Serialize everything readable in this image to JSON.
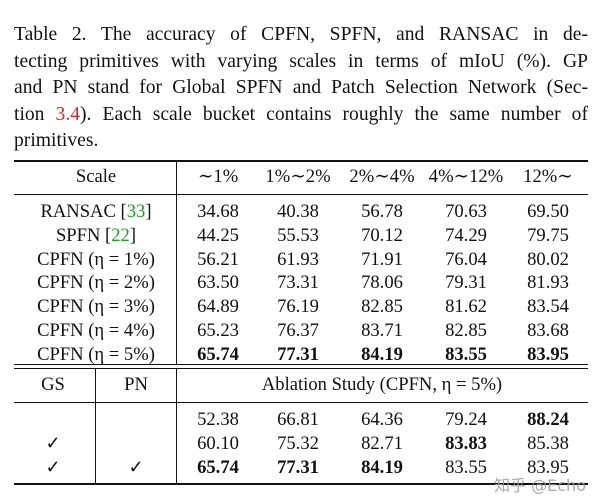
{
  "caption": {
    "line1": "Table 2.   The accuracy of CPFN, SPFN, and RANSAC in de-",
    "line2": "tecting primitives with varying scales in terms of mIoU (%). GP",
    "line3": "and PN stand for Global SPFN and Patch Selection Network (Sec-",
    "line4_a": "tion ",
    "line4_ref": "3.4",
    "line4_b": "). Each scale bucket contains roughly the same number of",
    "line5": "primitives."
  },
  "header": {
    "scale": "Scale",
    "cols": [
      "∼1%",
      "1%∼2%",
      "2%∼4%",
      "4%∼12%",
      "12%∼"
    ]
  },
  "rows": [
    {
      "label_a": "RANSAC [",
      "ref": "33",
      "label_b": "]",
      "values": [
        "34.68",
        "40.38",
        "56.78",
        "70.63",
        "69.50"
      ],
      "bold": [
        false,
        false,
        false,
        false,
        false
      ]
    },
    {
      "label_a": "SPFN [",
      "ref": "22",
      "label_b": "]",
      "values": [
        "44.25",
        "55.53",
        "70.12",
        "74.29",
        "79.75"
      ],
      "bold": [
        false,
        false,
        false,
        false,
        false
      ]
    },
    {
      "label": "CPFN (η = 1%)",
      "values": [
        "56.21",
        "61.93",
        "71.91",
        "76.04",
        "80.02"
      ],
      "bold": [
        false,
        false,
        false,
        false,
        false
      ]
    },
    {
      "label": "CPFN (η = 2%)",
      "values": [
        "63.50",
        "73.31",
        "78.06",
        "79.31",
        "81.93"
      ],
      "bold": [
        false,
        false,
        false,
        false,
        false
      ]
    },
    {
      "label": "CPFN (η = 3%)",
      "values": [
        "64.89",
        "76.19",
        "82.85",
        "81.62",
        "83.54"
      ],
      "bold": [
        false,
        false,
        false,
        false,
        false
      ]
    },
    {
      "label": "CPFN (η = 4%)",
      "values": [
        "65.23",
        "76.37",
        "83.71",
        "82.85",
        "83.68"
      ],
      "bold": [
        false,
        false,
        false,
        false,
        false
      ]
    },
    {
      "label": "CPFN (η = 5%)",
      "values": [
        "65.74",
        "77.31",
        "84.19",
        "83.55",
        "83.95"
      ],
      "bold": [
        true,
        true,
        true,
        true,
        true
      ]
    }
  ],
  "ablation": {
    "gs": "GS",
    "pn": "PN",
    "title": "Ablation Study (CPFN, η = 5%)",
    "check": "✓",
    "rows": [
      {
        "gs": false,
        "pn": false,
        "values": [
          "52.38",
          "66.81",
          "64.36",
          "79.24",
          "88.24"
        ],
        "bold": [
          false,
          false,
          false,
          false,
          true
        ]
      },
      {
        "gs": true,
        "pn": false,
        "values": [
          "60.10",
          "75.32",
          "82.71",
          "83.83",
          "85.38"
        ],
        "bold": [
          false,
          false,
          false,
          true,
          false
        ]
      },
      {
        "gs": true,
        "pn": true,
        "values": [
          "65.74",
          "77.31",
          "84.19",
          "83.55",
          "83.95"
        ],
        "bold": [
          true,
          true,
          true,
          false,
          false
        ]
      }
    ]
  },
  "watermark": "知乎 @Echo"
}
